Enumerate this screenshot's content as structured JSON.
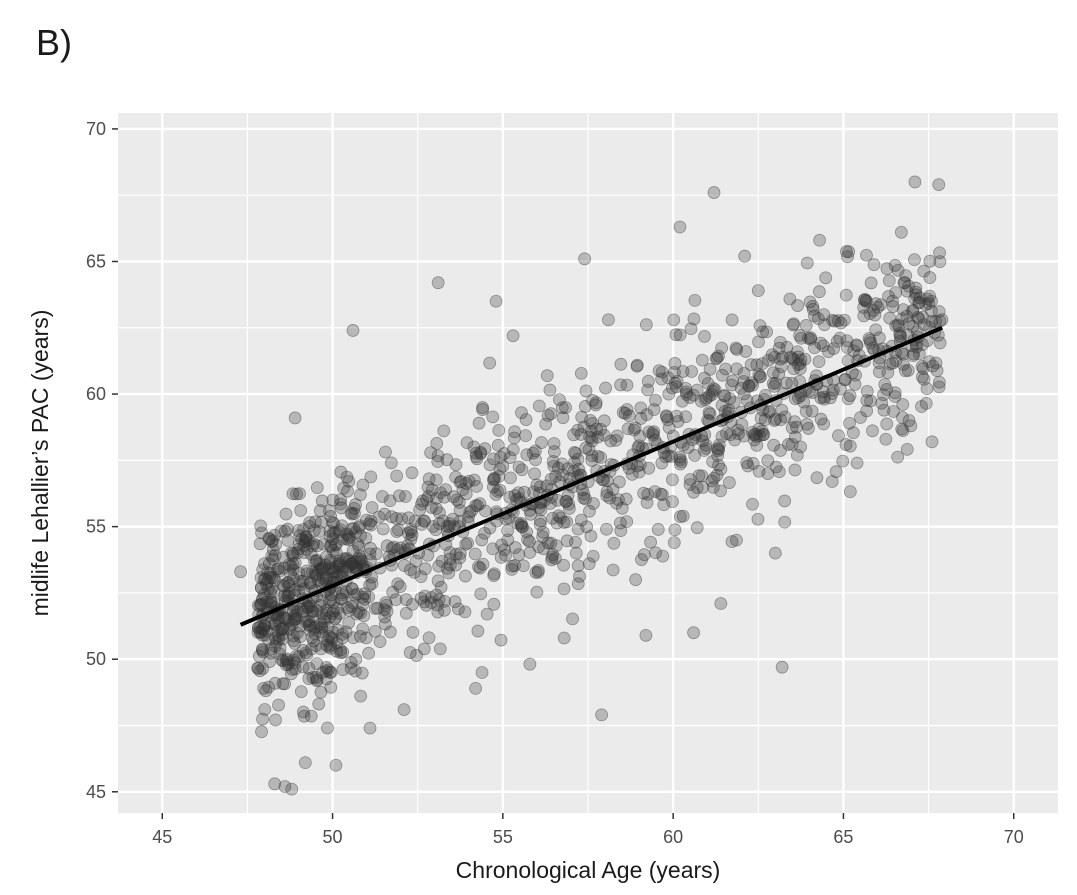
{
  "panel_label": "B)",
  "chart_data": {
    "type": "scatter",
    "title": "",
    "xlabel": "Chronological Age (years)",
    "ylabel": "midlife Lehallier’s PAC (years)",
    "xlim": [
      43.7,
      71.3
    ],
    "ylim": [
      44.2,
      70.6
    ],
    "x_ticks": [
      45,
      50,
      55,
      60,
      65,
      70
    ],
    "y_ticks": [
      45,
      50,
      55,
      60,
      65,
      70
    ],
    "grid": true,
    "legend": "none",
    "colors": {
      "panel": "#ebebeb",
      "grid": "#ffffff",
      "point": "#333333",
      "line": "#000000"
    },
    "fit_line": {
      "x": [
        47.3,
        67.9
      ],
      "y": [
        51.3,
        62.5
      ]
    },
    "points_seeded": {
      "count": 1450,
      "x_range": [
        47.3,
        67.9
      ],
      "noise_sd": 1.8
    },
    "points": [
      {
        "x": 47.3,
        "y": 53.3
      },
      {
        "x": 48.3,
        "y": 45.3
      },
      {
        "x": 48.6,
        "y": 45.2
      },
      {
        "x": 48.8,
        "y": 45.1
      },
      {
        "x": 48.9,
        "y": 59.1
      },
      {
        "x": 50.6,
        "y": 62.4
      },
      {
        "x": 53.1,
        "y": 64.2
      },
      {
        "x": 54.8,
        "y": 63.5
      },
      {
        "x": 57.4,
        "y": 65.1
      },
      {
        "x": 60.2,
        "y": 66.3
      },
      {
        "x": 61.2,
        "y": 67.6
      },
      {
        "x": 57.9,
        "y": 47.9
      },
      {
        "x": 63.2,
        "y": 49.7
      },
      {
        "x": 59.2,
        "y": 50.9
      },
      {
        "x": 60.6,
        "y": 51.0
      },
      {
        "x": 67.1,
        "y": 68.0
      },
      {
        "x": 67.8,
        "y": 67.9
      },
      {
        "x": 54.2,
        "y": 48.9
      },
      {
        "x": 49.2,
        "y": 46.1
      },
      {
        "x": 50.1,
        "y": 46.0
      },
      {
        "x": 65.7,
        "y": 60.1
      },
      {
        "x": 62.1,
        "y": 65.2
      },
      {
        "x": 64.3,
        "y": 65.8
      },
      {
        "x": 66.7,
        "y": 66.1
      },
      {
        "x": 67.6,
        "y": 58.2
      },
      {
        "x": 65.4,
        "y": 57.4
      },
      {
        "x": 63.0,
        "y": 54.0
      },
      {
        "x": 61.4,
        "y": 52.1
      },
      {
        "x": 58.9,
        "y": 53.0
      },
      {
        "x": 56.8,
        "y": 50.8
      },
      {
        "x": 51.1,
        "y": 47.4
      },
      {
        "x": 52.1,
        "y": 48.1
      },
      {
        "x": 55.3,
        "y": 62.2
      },
      {
        "x": 58.1,
        "y": 62.8
      },
      {
        "x": 62.5,
        "y": 63.9
      }
    ]
  }
}
